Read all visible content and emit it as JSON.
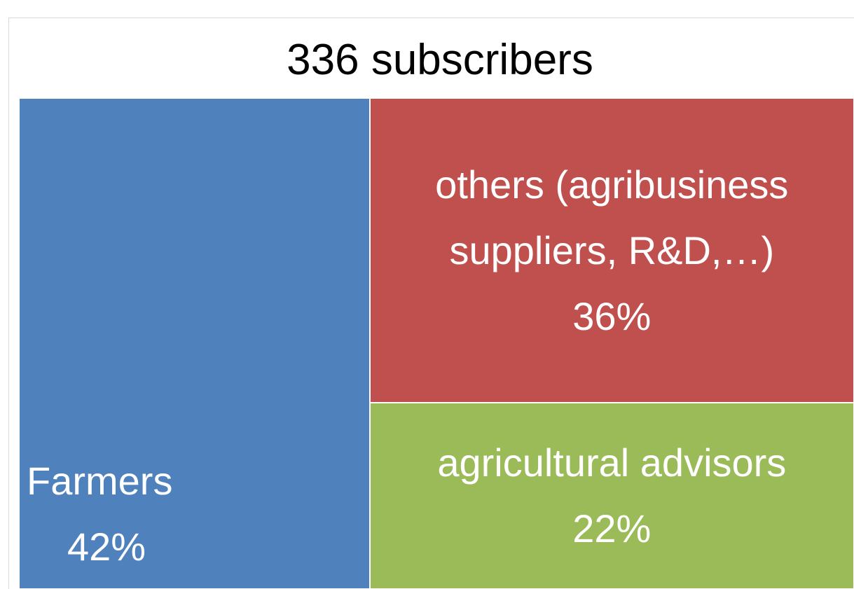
{
  "chart_data": {
    "type": "treemap",
    "title": "336 subscribers",
    "categories": [
      "Farmers",
      "others (agribusiness suppliers, R&D,…)",
      "agricultural advisors"
    ],
    "values": [
      42,
      36,
      22
    ],
    "value_labels": [
      "42%",
      "36%",
      "22%"
    ],
    "colors": [
      "#4f81bd",
      "#c0504d",
      "#9bbb59"
    ]
  }
}
